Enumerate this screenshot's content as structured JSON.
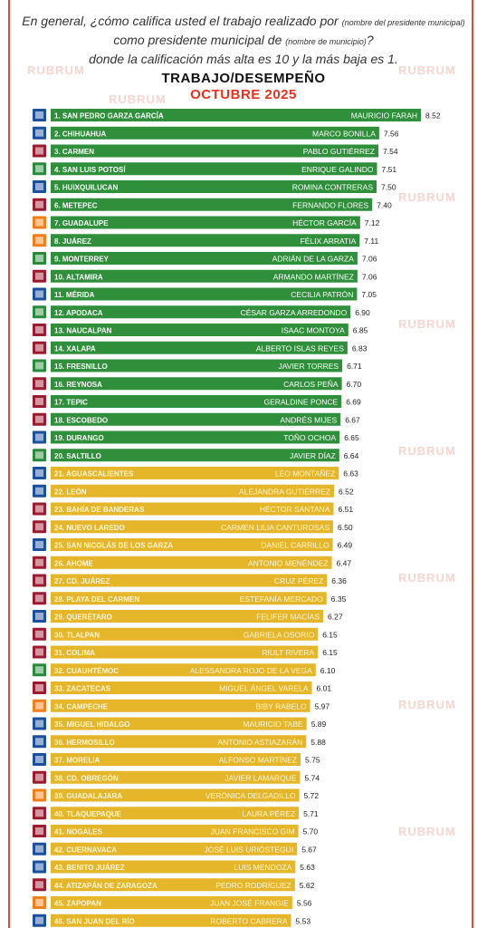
{
  "header": {
    "question_a": "En general, ¿cómo califica usted el trabajo realizado por",
    "question_note1": "(nombre del presidente municipal)",
    "question_b": "como presidente municipal de",
    "question_note2": "(nombre de municipio)",
    "question_c": "?",
    "question_d": "donde la calificación más alta es 10 y la más baja es 1.",
    "title": "TRABAJO/DESEMPEÑO",
    "subtitle": "OCTUBRE 2025"
  },
  "watermark": "RUBRUM",
  "colors": {
    "frame": "#e0492b",
    "top_bar": "#2f8f3b",
    "mid_bar": "#e5b52a",
    "title_accent": "#e8301c",
    "pan": "#1c4f9c",
    "morena": "#9b1b30",
    "mc": "#f07e1a",
    "pri": "#2a8a3c"
  },
  "chart_data": {
    "type": "bar",
    "orientation": "horizontal",
    "title": "TRABAJO/DESEMPEÑO",
    "subtitle": "OCTUBRE 2025",
    "xlim": [
      0,
      8.52
    ],
    "groups": {
      "green": "ranks 1-20",
      "yellow": "ranks 21-46"
    },
    "rows": [
      {
        "label": "1. SAN PEDRO GARZA GARCÍA",
        "name": "MAURICIO FARAH",
        "value": 8.52,
        "party": "pan"
      },
      {
        "label": "2. CHIHUAHUA",
        "name": "MARCO BONILLA",
        "value": 7.56,
        "party": "pan"
      },
      {
        "label": "3. CARMEN",
        "name": "PABLO GUTIÉRREZ",
        "value": 7.54,
        "party": "morena"
      },
      {
        "label": "4. SAN LUIS POTOSÍ",
        "name": "ENRIQUE GALINDO",
        "value": 7.51,
        "party": "pri"
      },
      {
        "label": "5. HUIXQUILUCAN",
        "name": "ROMINA CONTRERAS",
        "value": 7.5,
        "party": "pan"
      },
      {
        "label": "6. METEPEC",
        "name": "FERNANDO FLORES",
        "value": 7.4,
        "party": "morena"
      },
      {
        "label": "7. GUADALUPE",
        "name": "HÉCTOR GARCÍA",
        "value": 7.12,
        "party": "mc"
      },
      {
        "label": "8. JUÁREZ",
        "name": "FÉLIX ARRATIA",
        "value": 7.11,
        "party": "mc"
      },
      {
        "label": "9. MONTERREY",
        "name": "ADRIÁN DE LA GARZA",
        "value": 7.06,
        "party": "pri"
      },
      {
        "label": "10. ALTAMIRA",
        "name": "ARMANDO MARTÍNEZ",
        "value": 7.06,
        "party": "morena"
      },
      {
        "label": "11. MÉRIDA",
        "name": "CECILIA PATRÓN",
        "value": 7.05,
        "party": "pan"
      },
      {
        "label": "12. APODACA",
        "name": "CÉSAR GARZA ARREDONDO",
        "value": 6.9,
        "party": "pri"
      },
      {
        "label": "13. NAUCALPAN",
        "name": "ISAAC MONTOYA",
        "value": 6.85,
        "party": "morena"
      },
      {
        "label": "14. XALAPA",
        "name": "ALBERTO ISLAS REYES",
        "value": 6.83,
        "party": "morena"
      },
      {
        "label": "15. FRESNILLO",
        "name": "JAVIER TORRES",
        "value": 6.71,
        "party": "pri"
      },
      {
        "label": "16. REYNOSA",
        "name": "CARLOS PEÑA",
        "value": 6.7,
        "party": "morena"
      },
      {
        "label": "17. TEPIC",
        "name": "GERALDINE PONCE",
        "value": 6.69,
        "party": "morena"
      },
      {
        "label": "18. ESCOBEDO",
        "name": "ANDRÉS MIJES",
        "value": 6.67,
        "party": "morena"
      },
      {
        "label": "19. DURANGO",
        "name": "TOÑO OCHOA",
        "value": 6.65,
        "party": "pan"
      },
      {
        "label": "20. SALTILLO",
        "name": "JAVIER DÍAZ",
        "value": 6.64,
        "party": "pri"
      },
      {
        "label": "21. AGUASCALIENTES",
        "name": "LEO MONTAÑEZ",
        "value": 6.63,
        "party": "pan"
      },
      {
        "label": "22. LEÓN",
        "name": "ALEJANDRA GUTIÉRREZ",
        "value": 6.52,
        "party": "pan"
      },
      {
        "label": "23. BAHÍA DE BANDERAS",
        "name": "HÉCTOR SANTANA",
        "value": 6.51,
        "party": "morena"
      },
      {
        "label": "24. NUEVO LAREDO",
        "name": "CARMEN LILIA CANTUROSAS",
        "value": 6.5,
        "party": "morena"
      },
      {
        "label": "25. SAN NICOLÁS DE LOS GARZA",
        "name": "DANIEL CARRILLO",
        "value": 6.49,
        "party": "pan"
      },
      {
        "label": "26. AHOME",
        "name": "ANTONIO MENÉNDEZ",
        "value": 6.47,
        "party": "morena"
      },
      {
        "label": "27. CD. JUÁREZ",
        "name": "CRUZ PÉREZ",
        "value": 6.36,
        "party": "morena"
      },
      {
        "label": "28. PLAYA DEL CARMEN",
        "name": "ESTEFANÍA MERCADO",
        "value": 6.35,
        "party": "morena"
      },
      {
        "label": "29. QUERÉTARO",
        "name": "FELIFER MACÍAS",
        "value": 6.27,
        "party": "pan"
      },
      {
        "label": "30. TLALPAN",
        "name": "GABRIELA OSORIO",
        "value": 6.15,
        "party": "morena"
      },
      {
        "label": "31. COLIMA",
        "name": "RIULT RIVERA",
        "value": 6.15,
        "party": "morena"
      },
      {
        "label": "32. CUAUHTÉMOC",
        "name": "ALESSANDRA ROJO DE LA VEGA",
        "value": 6.1,
        "party": "pri"
      },
      {
        "label": "33. ZACATECAS",
        "name": "MIGUEL ÁNGEL VARELA",
        "value": 6.01,
        "party": "morena"
      },
      {
        "label": "34. CAMPECHE",
        "name": "BIBY RABELO",
        "value": 5.97,
        "party": "mc"
      },
      {
        "label": "35. MIGUEL HIDALGO",
        "name": "MAURICIO TABE",
        "value": 5.89,
        "party": "pan"
      },
      {
        "label": "36. HERMOSILLO",
        "name": "ANTONIO ASTIAZARÁN",
        "value": 5.88,
        "party": "pan"
      },
      {
        "label": "37. MORELIA",
        "name": "ALFONSO MARTÍNEZ",
        "value": 5.75,
        "party": "pan"
      },
      {
        "label": "38. CD. OBREGÓN",
        "name": "JAVIER LAMARQUE",
        "value": 5.74,
        "party": "morena"
      },
      {
        "label": "39. GUADALAJARA",
        "name": "VERÓNICA DELGADILLO",
        "value": 5.72,
        "party": "mc"
      },
      {
        "label": "40. TLAQUEPAQUE",
        "name": "LAURA PÉREZ",
        "value": 5.71,
        "party": "morena"
      },
      {
        "label": "41. NOGALES",
        "name": "JUAN FRANCISCO GIM",
        "value": 5.7,
        "party": "morena"
      },
      {
        "label": "42. CUERNAVACA",
        "name": "JOSÉ LUIS URIÓSTEGUI",
        "value": 5.67,
        "party": "pan"
      },
      {
        "label": "43. BENITO JUÁREZ",
        "name": "LUIS MENDOZA",
        "value": 5.63,
        "party": "pan"
      },
      {
        "label": "44. ATIZAPÁN DE ZARAGOZA",
        "name": "PEDRO RODRÍGUEZ",
        "value": 5.62,
        "party": "morena"
      },
      {
        "label": "45. ZAPOPAN",
        "name": "JUAN JOSÉ FRANGIE",
        "value": 5.56,
        "party": "mc"
      },
      {
        "label": "46. SAN JUAN DEL RÍO",
        "name": "ROBERTO CABRERA",
        "value": 5.53,
        "party": "pan"
      }
    ]
  }
}
